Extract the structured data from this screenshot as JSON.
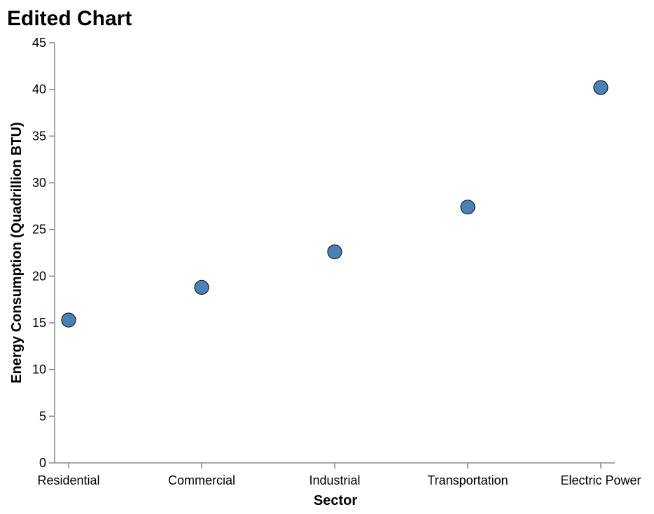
{
  "chart_data": {
    "type": "scatter",
    "title": "Edited Chart",
    "xlabel": "Sector",
    "ylabel": "Energy Consumption (Quadrillion BTU)",
    "categories": [
      "Residential",
      "Commercial",
      "Industrial",
      "Transportation",
      "Electric Power"
    ],
    "values": [
      15.3,
      18.8,
      22.6,
      27.4,
      40.2
    ],
    "ylim": [
      0,
      45
    ],
    "yticks": [
      0,
      5,
      10,
      15,
      20,
      25,
      30,
      35,
      40,
      45
    ],
    "grid": false,
    "point_color": "#4a82b8"
  }
}
